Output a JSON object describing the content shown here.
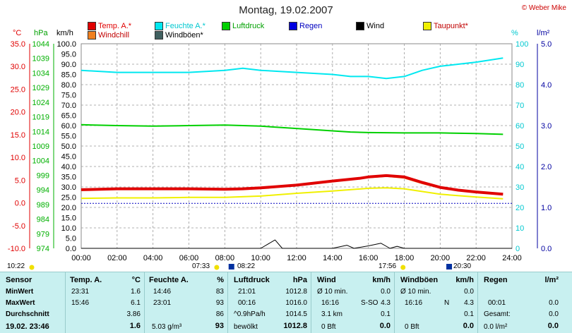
{
  "header": {
    "title": "Montag, 19.02.2007",
    "brand": "© Weber Mike"
  },
  "legend": [
    {
      "label": "Temp. A.*",
      "color": "#e00000"
    },
    {
      "label": "Feuchte A.*",
      "color": "#00e8f0"
    },
    {
      "label": "Luftdruck",
      "color": "#00d000"
    },
    {
      "label": "Regen",
      "color": "#0000e0"
    },
    {
      "label": "Wind",
      "color": "#000000"
    },
    {
      "label": "Taupunkt*",
      "color": "#f0f000"
    },
    {
      "label": "Windchill",
      "color": "#f08020"
    },
    {
      "label": "Windböen*",
      "color": "#406060"
    }
  ],
  "axis_units": {
    "temp": "°C",
    "pressure": "hPa",
    "wind": "km/h",
    "humidity": "%",
    "rain": "l/m²"
  },
  "chart_data": {
    "type": "line",
    "x_ticks": [
      "00:00",
      "02:00",
      "04:00",
      "06:00",
      "08:00",
      "10:00",
      "12:00",
      "14:00",
      "16:00",
      "18:00",
      "20:00",
      "22:00",
      "24:00"
    ],
    "axes": {
      "temp": {
        "min": -10,
        "max": 35,
        "ticks": [
          "35.0",
          "30.0",
          "25.0",
          "20.0",
          "15.0",
          "10.0",
          "5.0",
          "0.0",
          "-5.0",
          "-10.0"
        ]
      },
      "pressure": {
        "min": 974,
        "max": 1044,
        "ticks": [
          "1044",
          "1039",
          "1034",
          "1029",
          "1024",
          "1019",
          "1014",
          "1009",
          "1004",
          "999",
          "994",
          "989",
          "984",
          "979",
          "974"
        ]
      },
      "wind": {
        "min": 0,
        "max": 100,
        "ticks": [
          "100.0",
          "95.0",
          "90.0",
          "85.0",
          "80.0",
          "75.0",
          "70.0",
          "65.0",
          "60.0",
          "55.0",
          "50.0",
          "45.0",
          "40.0",
          "35.0",
          "30.0",
          "25.0",
          "20.0",
          "15.0",
          "10.0",
          "5.0",
          "0.0"
        ]
      },
      "humidity": {
        "min": 0,
        "max": 100,
        "ticks": [
          "100",
          "90",
          "80",
          "70",
          "60",
          "50",
          "40",
          "30",
          "20",
          "10",
          "0"
        ]
      },
      "rain": {
        "min": 0,
        "max": 5,
        "ticks": [
          "5.0",
          "4.0",
          "3.0",
          "2.0",
          "1.0",
          "0.0"
        ]
      }
    },
    "series": [
      {
        "name": "Temp. A.*",
        "axis": "temp",
        "color": "#e00000",
        "width": 4,
        "x": [
          0,
          2,
          4,
          6,
          8,
          9,
          10,
          12,
          14,
          15.5,
          16,
          17,
          18,
          19,
          20,
          21,
          22,
          23.5
        ],
        "y": [
          2.9,
          3.1,
          3.1,
          3.1,
          3.0,
          3.1,
          3.3,
          3.9,
          4.8,
          5.4,
          5.7,
          6.0,
          5.7,
          4.5,
          3.4,
          2.8,
          2.4,
          1.9
        ]
      },
      {
        "name": "Feuchte A.*",
        "axis": "humidity",
        "color": "#00e8f0",
        "width": 2,
        "x": [
          0,
          2,
          4,
          6,
          8,
          9,
          10,
          12,
          14,
          15,
          16,
          17,
          18,
          19,
          20,
          21,
          22,
          23.5
        ],
        "y": [
          87,
          86,
          86,
          86,
          87,
          88,
          87,
          86,
          85,
          84,
          84,
          83,
          84,
          87,
          89,
          90,
          91,
          93
        ]
      },
      {
        "name": "Luftdruck",
        "axis": "pressure",
        "color": "#00d000",
        "width": 2,
        "x": [
          0,
          2,
          4,
          6,
          8,
          9,
          10,
          12,
          14,
          15,
          16,
          18,
          20,
          22,
          23.5
        ],
        "y": [
          1016.3,
          1016.0,
          1015.8,
          1016.0,
          1016.2,
          1016.0,
          1015.8,
          1015.0,
          1014.2,
          1013.8,
          1013.6,
          1013.5,
          1013.5,
          1013.3,
          1013.0
        ]
      },
      {
        "name": "Taupunkt*",
        "axis": "temp",
        "color": "#f0f000",
        "width": 2,
        "x": [
          0,
          2,
          4,
          6,
          8,
          10,
          12,
          14,
          16,
          17,
          18,
          20,
          22,
          23.5
        ],
        "y": [
          1.0,
          1.1,
          1.1,
          1.2,
          1.2,
          1.5,
          2.1,
          2.6,
          3.2,
          3.3,
          3.1,
          1.9,
          1.3,
          0.9
        ]
      },
      {
        "name": "Windchill",
        "axis": "temp",
        "color": "#f08020",
        "width": 1,
        "x": [
          0,
          2,
          4,
          6,
          8,
          10,
          12,
          14,
          16,
          17,
          18,
          19,
          20,
          22,
          23.5
        ],
        "y": [
          2.9,
          3.1,
          3.1,
          3.1,
          3.0,
          3.3,
          3.9,
          4.7,
          5.5,
          5.8,
          5.4,
          4.2,
          3.2,
          2.2,
          1.9
        ]
      },
      {
        "name": "Wind",
        "axis": "wind",
        "color": "#000000",
        "width": 1,
        "x": [
          0,
          8,
          10,
          10.8,
          11.2,
          12,
          14,
          14.8,
          15.2,
          16,
          16.7,
          17.2,
          17.6,
          18,
          24
        ],
        "y": [
          0,
          0,
          0,
          4.1,
          0,
          0,
          0,
          1.5,
          0,
          1.2,
          2.5,
          0,
          1.0,
          0,
          0
        ]
      }
    ],
    "rain_baseline": 1.1
  },
  "markers": {
    "left_time": "10:22",
    "sunrise": "07:33",
    "moonrise": "08:22",
    "sunset": "17:56",
    "moonset": "20:30"
  },
  "table": {
    "sensor": {
      "header": "Sensor",
      "rows": [
        "MinWert",
        "MaxWert",
        "Durchschnitt",
        "19.02. 23:46"
      ]
    },
    "temp": {
      "header": "Temp. A.",
      "unit": "°C",
      "rows": [
        [
          "23:31",
          "1.6"
        ],
        [
          "15:46",
          "6.1"
        ],
        [
          "",
          "3.86"
        ],
        [
          "",
          "1.6"
        ]
      ]
    },
    "humidity": {
      "header": "Feuchte A.",
      "unit": "%",
      "rows": [
        [
          "14:46",
          "83"
        ],
        [
          "23:01",
          "93"
        ],
        [
          "",
          "86"
        ],
        [
          "5.03 g/m³",
          "93"
        ]
      ]
    },
    "pressure": {
      "header": "Luftdruck",
      "unit": "hPa",
      "rows": [
        [
          "21:01",
          "1012.8"
        ],
        [
          "00:16",
          "1016.0"
        ],
        [
          "^0.9hPa/h",
          "1014.5"
        ],
        [
          "bewölkt",
          "1012.8"
        ]
      ]
    },
    "wind": {
      "header": "Wind",
      "unit": "km/h",
      "rows": [
        [
          "Ø 10 min.",
          "",
          "0.0"
        ],
        [
          "16:16",
          "S-SO",
          "4.3"
        ],
        [
          "3.1 km",
          "",
          "0.1"
        ],
        [
          "0 Bft",
          "",
          "0.0"
        ]
      ]
    },
    "gusts": {
      "header": "Windböen",
      "unit": "km/h",
      "rows": [
        [
          "Ø 10 min.",
          "",
          "0.0"
        ],
        [
          "16:16",
          "N",
          "4.3"
        ],
        [
          "",
          "",
          "0.1"
        ],
        [
          "0 Bft",
          "",
          "0.0"
        ]
      ]
    },
    "rain": {
      "header": "Regen",
      "unit": "l/m²",
      "rows": [
        [
          "",
          ""
        ],
        [
          "00:01",
          "0.0"
        ],
        [
          "Gesamt:",
          "0.0"
        ],
        [
          "0.0 l/m²",
          "0.0"
        ]
      ]
    }
  }
}
